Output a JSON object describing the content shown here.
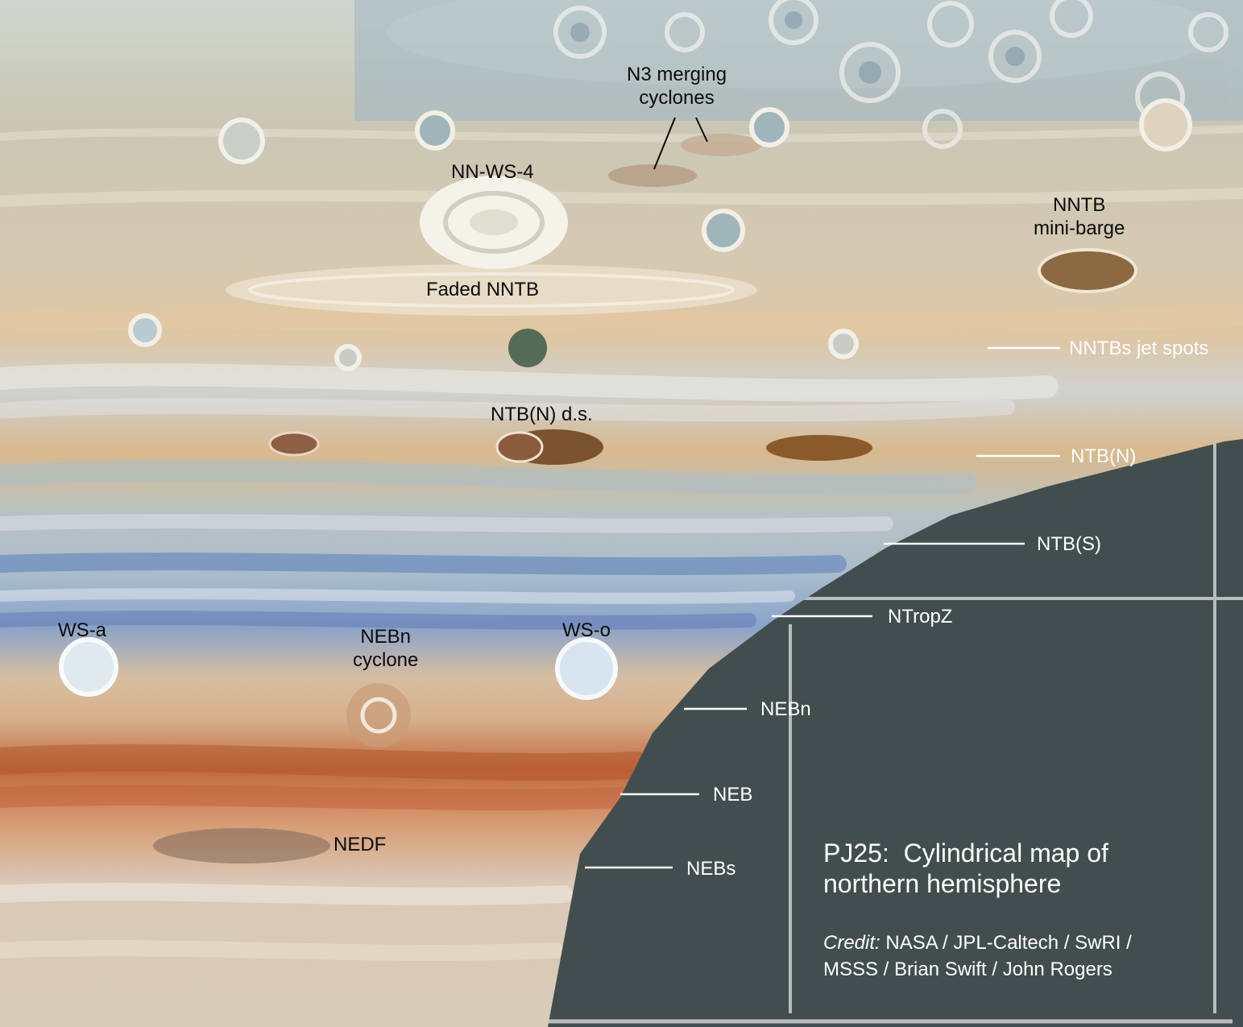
{
  "title": "PJ25:  Cylindrical map of\nnorthern hemisphere",
  "credit_label": "Credit:",
  "credit_text": " NASA / JPL-Caltech / SwRI /\nMSSS / Brian Swift / John Rogers",
  "features": [
    "N3 merging\ncyclones",
    "NN-WS-4",
    "NNTB\nmini-barge",
    "Faded NNTB",
    "NTB(N) d.s.",
    "WS-a",
    "NEBn\ncyclone",
    "WS-o",
    "NEDF"
  ],
  "belts": [
    "NNTBs jet spots",
    "NTB(N)",
    "NTB(S)",
    "NTropZ",
    "NEBn",
    "NEB",
    "NEBs"
  ],
  "colors": {
    "background": "#424e4e",
    "grid": "#b9bdbd",
    "dark_label": "#0b0b0b",
    "light_label": "#ffffff"
  }
}
